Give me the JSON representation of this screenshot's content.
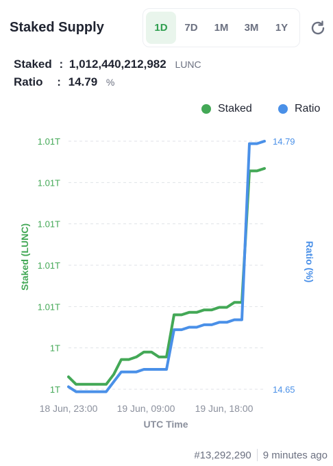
{
  "header": {
    "title": "Staked Supply",
    "ranges": [
      "1D",
      "7D",
      "1M",
      "3M",
      "1Y"
    ],
    "active_range": "1D"
  },
  "stats": {
    "staked_label": "Staked",
    "staked_value": "1,012,440,212,982",
    "staked_unit": "LUNC",
    "ratio_label": "Ratio",
    "ratio_value": "14.79",
    "ratio_unit": "%"
  },
  "chart_data": {
    "type": "line",
    "xlabel": "UTC Time",
    "ylabel_left": "Staked (LUNC)",
    "ylabel_right": "Ratio (%)",
    "x_ticks": [
      "18 Jun, 23:00",
      "19 Jun, 09:00",
      "19 Jun, 18:00"
    ],
    "y_ticks_left": [
      "1T",
      "1T",
      "1.01T",
      "1.01T",
      "1.01T",
      "1.01T",
      "1.01T"
    ],
    "y_ticks_right": [
      "14.65",
      "14.79"
    ],
    "legend_position": "top-right",
    "grid": true,
    "colors": {
      "staked": "#43a856",
      "ratio": "#4a90e8"
    },
    "series": [
      {
        "name": "Staked",
        "axis": "left",
        "values": [
          0.05,
          0.02,
          0.02,
          0.02,
          0.02,
          0.02,
          0.06,
          0.12,
          0.12,
          0.13,
          0.15,
          0.15,
          0.13,
          0.13,
          0.3,
          0.3,
          0.31,
          0.31,
          0.32,
          0.32,
          0.33,
          0.33,
          0.35,
          0.35,
          0.88,
          0.88,
          0.89
        ]
      },
      {
        "name": "Ratio",
        "axis": "right",
        "values": [
          0.01,
          -0.01,
          -0.01,
          -0.01,
          -0.01,
          -0.01,
          0.03,
          0.07,
          0.07,
          0.07,
          0.08,
          0.08,
          0.08,
          0.08,
          0.24,
          0.24,
          0.25,
          0.25,
          0.26,
          0.26,
          0.27,
          0.27,
          0.28,
          0.28,
          0.99,
          0.99,
          1.0
        ]
      }
    ]
  },
  "footer": {
    "block": "#13,292,290",
    "time_ago": "9 minutes ago"
  }
}
